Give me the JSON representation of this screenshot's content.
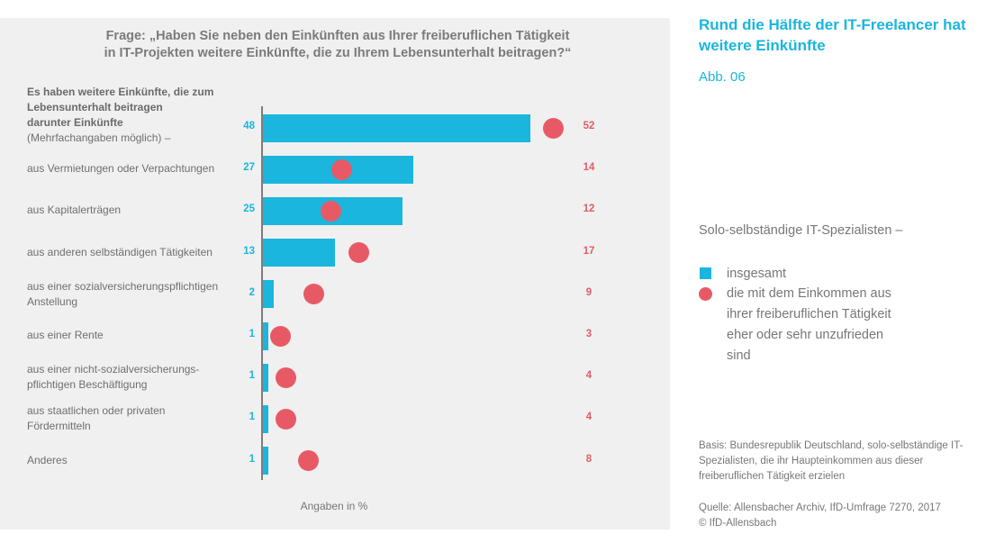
{
  "header": {
    "title": "Rund die Hälfte der IT-Freelancer hat weitere Einkünfte",
    "figure_number": "Abb. 06"
  },
  "question": "Frage: „Haben Sie neben den Einkünften aus Ihrer freiberuflichen Tätigkeit in IT-Projekten weitere Einkünfte, die zu Ihrem Lebensunterhalt beitragen?“",
  "first_label": {
    "bold_line1": "Es haben weitere Einkünfte, die zum Lebensunterhalt beitragen",
    "bold_line2": "darunter Einkünfte",
    "normal": "(Mehrfachangaben möglich) –"
  },
  "units_label": "Angaben in %",
  "legend": {
    "heading": "Solo-selbständige IT-Spezialisten –",
    "items": [
      {
        "label": "insgesamt",
        "shape": "square",
        "color": "#1ab6de"
      },
      {
        "label": "die mit dem Einkommen aus ihrer freiberuflichen Tätigkeit eher oder sehr unzufrieden sind",
        "shape": "circle",
        "color": "#e75a65"
      }
    ]
  },
  "footer": {
    "basis": "Basis: Bundesrepublik Deutschland, solo-selbständige IT-Spezialisten, die ihr Haupteinkommen aus dieser freiberuflichen Tätigkeit erzielen",
    "source": "Quelle: Allensbacher Archiv, IfD-Umfrage 7270, 2017",
    "copyright": "© IfD-Allensbach"
  },
  "colors": {
    "bar": "#1ab6de",
    "dot": "#e75a65"
  },
  "chart_data": {
    "type": "bar",
    "orientation": "horizontal",
    "title": "Frage: „Haben Sie neben den Einkünften aus Ihrer freiberuflichen Tätigkeit in IT-Projekten weitere Einkünfte, die zu Ihrem Lebensunterhalt beitragen?“",
    "xlabel": "Angaben in %",
    "ylabel": "",
    "xlim": [
      0,
      100
    ],
    "grid": false,
    "legend_position": "right",
    "categories": [
      "Es haben weitere Einkünfte, die zum Lebensunterhalt beitragen / darunter Einkünfte (Mehrfachangaben möglich) –",
      "aus Vermietungen oder Verpachtungen",
      "aus Kapitalerträgen",
      "aus anderen selbständigen Tätigkeiten",
      "aus einer sozialversicherungspflichtigen Anstellung",
      "aus einer Rente",
      "aus einer nicht-sozialversicherungs-pflichtigen Beschäftigung",
      "aus staatlichen oder privaten Fördermitteln",
      "Anderes"
    ],
    "series": [
      {
        "name": "insgesamt",
        "mark": "bar",
        "values": [
          48,
          27,
          25,
          13,
          2,
          1,
          1,
          1,
          1
        ]
      },
      {
        "name": "die mit dem Einkommen aus ihrer freiberuflichen Tätigkeit eher oder sehr unzufrieden sind",
        "mark": "dot",
        "values": [
          52,
          14,
          12,
          17,
          9,
          3,
          4,
          4,
          8
        ]
      }
    ]
  }
}
